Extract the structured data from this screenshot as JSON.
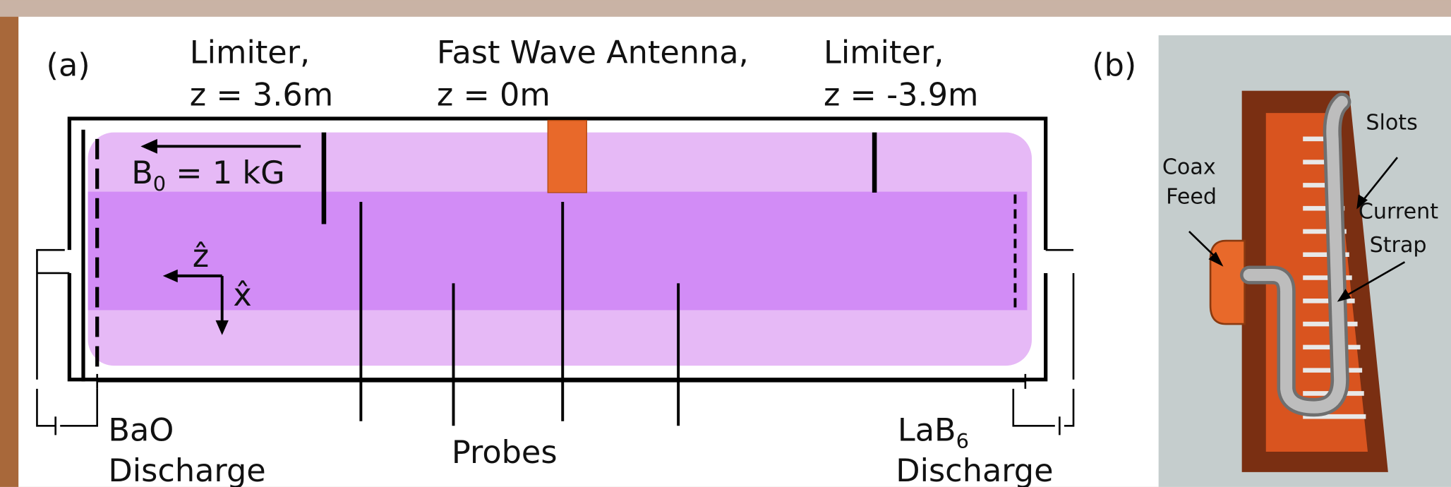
{
  "panel_a": {
    "label": "(a)",
    "limiter_left": [
      "Limiter,",
      "z = 3.6m"
    ],
    "antenna": [
      "Fast Wave Antenna,",
      "z = 0m"
    ],
    "limiter_right": [
      "Limiter,",
      "z = -3.9m"
    ],
    "field": {
      "main": "B",
      "sub": "0",
      "rest": " = 1 kG"
    },
    "axis_z": "ẑ",
    "axis_x": "x̂",
    "bao": [
      "BaO",
      "Discharge"
    ],
    "probes": "Probes",
    "lab6": {
      "main": "LaB",
      "sub": "6",
      "line2": "Discharge"
    }
  },
  "panel_b": {
    "label": "(b)",
    "slots": "Slots",
    "coax": [
      "Coax",
      "Feed"
    ],
    "strap": [
      "Current",
      "Strap"
    ]
  }
}
